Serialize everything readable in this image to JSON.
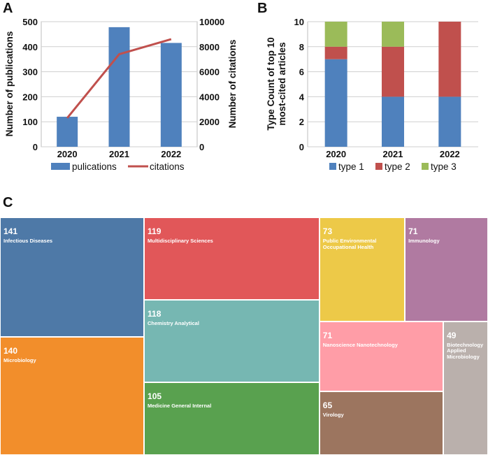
{
  "chart_data": [
    {
      "panel": "A",
      "type": "bar+line",
      "categories": [
        "2020",
        "2021",
        "2022"
      ],
      "series": [
        {
          "name": "pulications",
          "kind": "bar",
          "axis": "left",
          "values": [
            120,
            478,
            415
          ],
          "color": "#4F81BD"
        },
        {
          "name": "citations",
          "kind": "line",
          "axis": "right",
          "values": [
            2300,
            7400,
            8600
          ],
          "color": "#C0504D"
        }
      ],
      "ylabel": "Number of publications",
      "y2label": "Number of citations",
      "ylim": [
        0,
        500
      ],
      "y2lim": [
        0,
        10000
      ],
      "yticks": [
        "0",
        "100",
        "200",
        "300",
        "400",
        "500"
      ],
      "y2ticks": [
        "0",
        "2000",
        "4000",
        "6000",
        "8000",
        "10000"
      ],
      "legend_position": "bottom"
    },
    {
      "panel": "B",
      "type": "stacked-bar",
      "categories": [
        "2020",
        "2021",
        "2022"
      ],
      "series": [
        {
          "name": "type 1",
          "values": [
            7,
            4,
            4
          ],
          "color": "#4F81BD"
        },
        {
          "name": "type 2",
          "values": [
            1,
            4,
            6
          ],
          "color": "#C0504D"
        },
        {
          "name": "type 3",
          "values": [
            2,
            2,
            0
          ],
          "color": "#9BBB59"
        }
      ],
      "ylabel": [
        "Type Count of top 10",
        "most-cited articles"
      ],
      "ylim": [
        0,
        10
      ],
      "yticks": [
        "0",
        "2",
        "4",
        "6",
        "8",
        "10"
      ],
      "legend_position": "bottom"
    },
    {
      "panel": "C",
      "type": "treemap",
      "items": [
        {
          "label": "Infectious Diseases",
          "value": 141,
          "color": "#4E79A7"
        },
        {
          "label": "Microbiology",
          "value": 140,
          "color": "#F28E2B"
        },
        {
          "label": "Multidisciplinary Sciences",
          "value": 119,
          "color": "#E15759"
        },
        {
          "label": "Chemistry Analytical",
          "value": 118,
          "color": "#76B7B2"
        },
        {
          "label": "Medicine General Internal",
          "value": 105,
          "color": "#59A14F"
        },
        {
          "label": "Public Environmental Occupational Health",
          "value": 73,
          "color": "#EDC948"
        },
        {
          "label": "Immunology",
          "value": 71,
          "color": "#B07AA1"
        },
        {
          "label": "Nanoscience Nanotechnology",
          "value": 71,
          "color": "#FF9DA7"
        },
        {
          "label": "Virology",
          "value": 65,
          "color": "#9C755F"
        },
        {
          "label": "Biotechnology Applied Microbiology",
          "value": 49,
          "color": "#BAB0AC"
        }
      ]
    }
  ]
}
